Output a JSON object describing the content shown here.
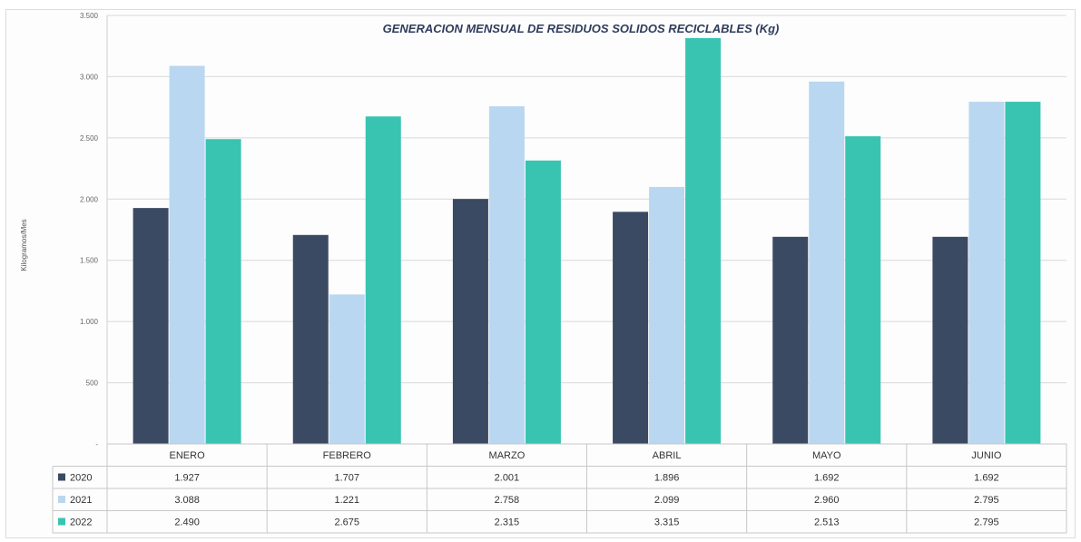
{
  "chart_data": {
    "type": "bar",
    "title": "GENERACION MENSUAL DE RESIDUOS SOLIDOS RECICLABLES (Kg)",
    "ylabel": "Kilogramos/Mes",
    "xlabel": "",
    "categories": [
      "ENERO",
      "FEBRERO",
      "MARZO",
      "ABRIL",
      "MAYO",
      "JUNIO"
    ],
    "ylim": [
      0,
      3500
    ],
    "yticks": [
      "-",
      "500",
      "1.000",
      "1.500",
      "2.000",
      "2.500",
      "3.000",
      "3.500"
    ],
    "grid": true,
    "legend": "data-table-left",
    "series": [
      {
        "name": "2020",
        "color": "#3b4a63",
        "values": [
          1927,
          1707,
          2001,
          1896,
          1692,
          1692
        ],
        "labels": [
          "1.927",
          "1.707",
          "2.001",
          "1.896",
          "1.692",
          "1.692"
        ]
      },
      {
        "name": "2021",
        "color": "#b9d7f0",
        "values": [
          3088,
          1221,
          2758,
          2099,
          2960,
          2795
        ],
        "labels": [
          "3.088",
          "1.221",
          "2.758",
          "2.099",
          "2.960",
          "2.795"
        ]
      },
      {
        "name": "2022",
        "color": "#39c4b2",
        "values": [
          2490,
          2675,
          2315,
          3315,
          2513,
          2795
        ],
        "labels": [
          "2.490",
          "2.675",
          "2.315",
          "3.315",
          "2.513",
          "2.795"
        ]
      }
    ]
  }
}
